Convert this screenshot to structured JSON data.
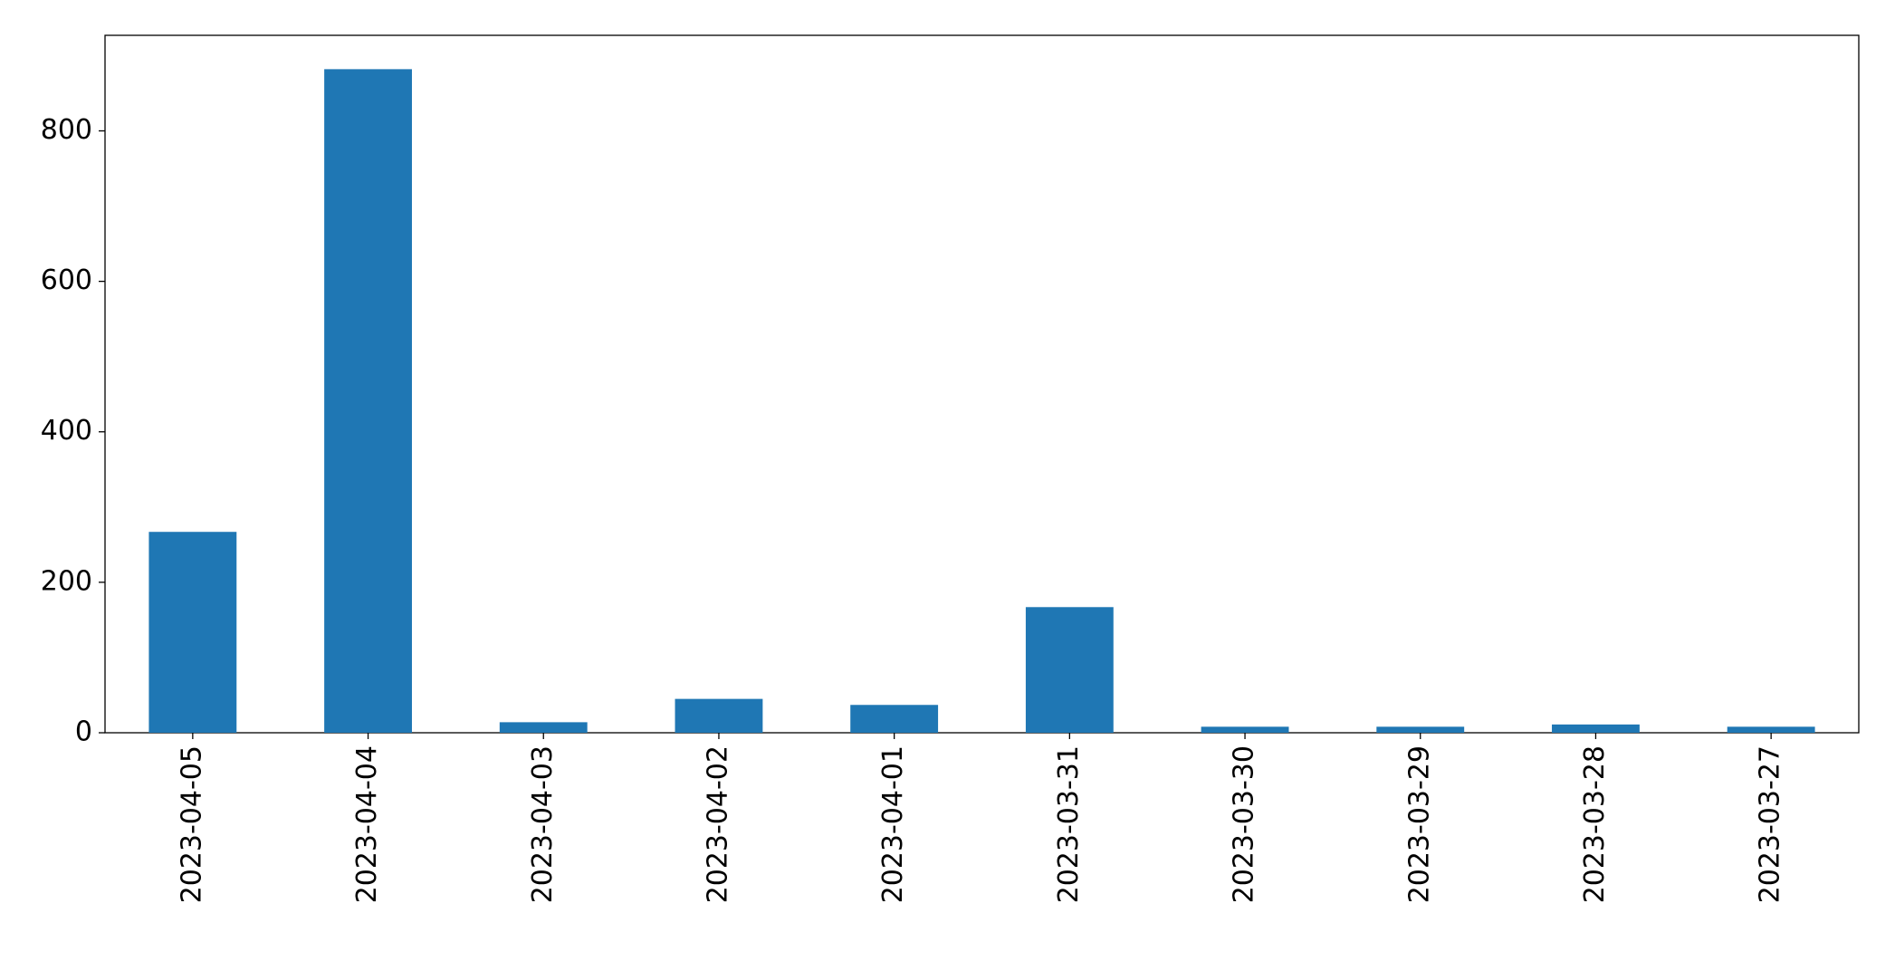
{
  "chart_data": {
    "type": "bar",
    "categories": [
      "2023-04-05",
      "2023-04-04",
      "2023-04-03",
      "2023-04-02",
      "2023-04-01",
      "2023-03-31",
      "2023-03-30",
      "2023-03-29",
      "2023-03-28",
      "2023-03-27"
    ],
    "values": [
      267,
      882,
      14,
      45,
      37,
      167,
      8,
      8,
      11,
      8
    ],
    "color": "#1f77b4",
    "ylim": [
      0,
      927
    ],
    "yticks": [
      0,
      200,
      400,
      600,
      800
    ],
    "grid": false
  }
}
